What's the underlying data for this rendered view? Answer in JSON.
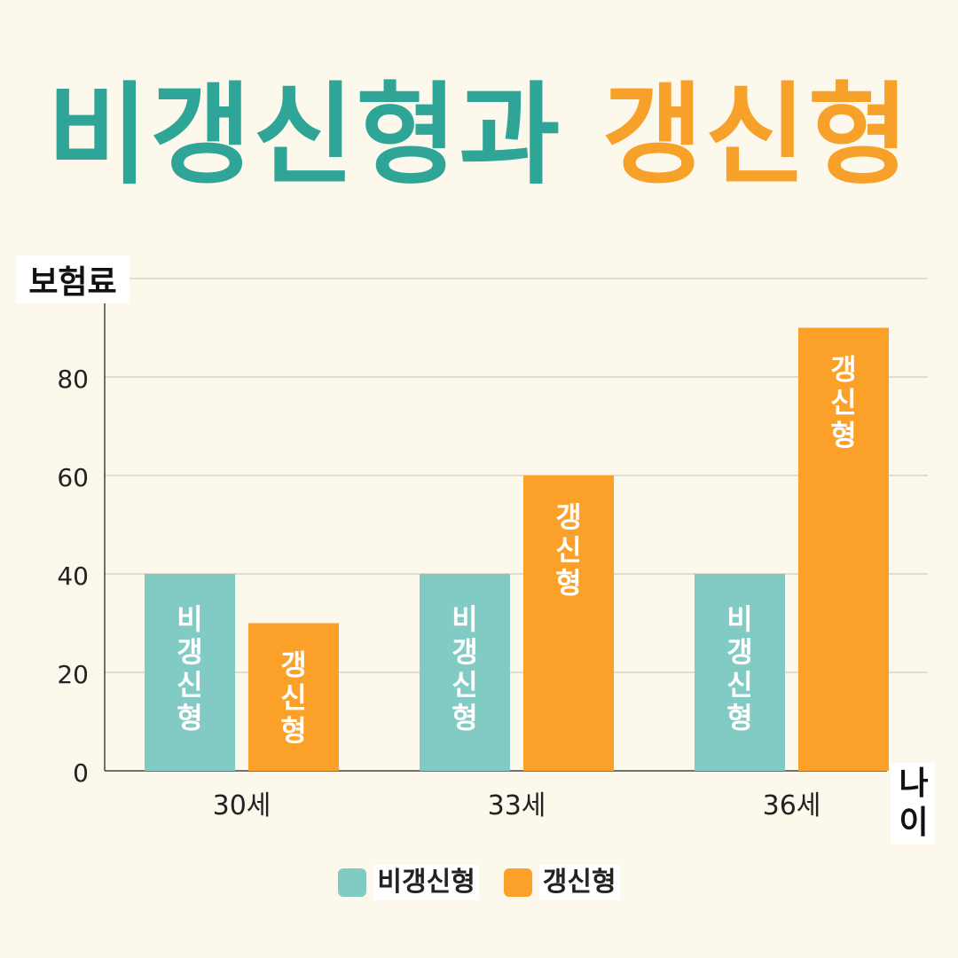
{
  "title": {
    "part1": "비갱신형과",
    "part2": "갱신형"
  },
  "colors": {
    "series1": "#82cbc4",
    "series2": "#fba12a",
    "title1": "#2ea597",
    "title2": "#f7a02a"
  },
  "chart_data": {
    "type": "bar",
    "ylabel": "보험료",
    "xlabel": "나이",
    "categories": [
      "30세",
      "33세",
      "36세"
    ],
    "series": [
      {
        "name": "비갱신형",
        "values": [
          40,
          40,
          40
        ]
      },
      {
        "name": "갱신형",
        "values": [
          30,
          60,
          90
        ]
      }
    ],
    "yticks": [
      0,
      20,
      40,
      60,
      80
    ],
    "ylim": [
      0,
      100
    ],
    "grid": true,
    "legend_position": "bottom"
  }
}
